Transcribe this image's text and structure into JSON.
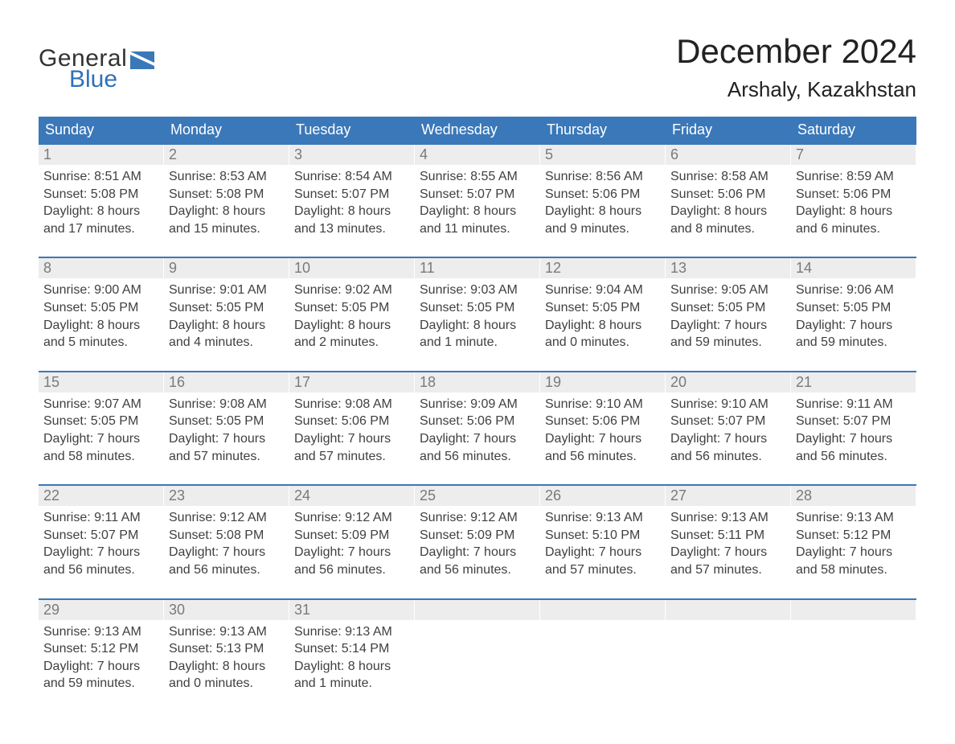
{
  "brand": {
    "general": "General",
    "blue": "Blue",
    "flag_color": "#3a78b9"
  },
  "title": "December 2024",
  "location": "Arshaly, Kazakhstan",
  "colors": {
    "header_bg": "#3a78b9",
    "header_text": "#ffffff",
    "daynum_bg": "#ededed",
    "daynum_text": "#7a7a7a",
    "body_text": "#404040",
    "week_border": "#3a78b9",
    "page_bg": "#ffffff"
  },
  "font": {
    "family": "Arial",
    "header_size_pt": 14,
    "body_size_pt": 12,
    "title_size_pt": 32,
    "location_size_pt": 20
  },
  "day_headers": [
    "Sunday",
    "Monday",
    "Tuesday",
    "Wednesday",
    "Thursday",
    "Friday",
    "Saturday"
  ],
  "weeks": [
    [
      {
        "n": "1",
        "sunrise": "Sunrise: 8:51 AM",
        "sunset": "Sunset: 5:08 PM",
        "d1": "Daylight: 8 hours",
        "d2": "and 17 minutes."
      },
      {
        "n": "2",
        "sunrise": "Sunrise: 8:53 AM",
        "sunset": "Sunset: 5:08 PM",
        "d1": "Daylight: 8 hours",
        "d2": "and 15 minutes."
      },
      {
        "n": "3",
        "sunrise": "Sunrise: 8:54 AM",
        "sunset": "Sunset: 5:07 PM",
        "d1": "Daylight: 8 hours",
        "d2": "and 13 minutes."
      },
      {
        "n": "4",
        "sunrise": "Sunrise: 8:55 AM",
        "sunset": "Sunset: 5:07 PM",
        "d1": "Daylight: 8 hours",
        "d2": "and 11 minutes."
      },
      {
        "n": "5",
        "sunrise": "Sunrise: 8:56 AM",
        "sunset": "Sunset: 5:06 PM",
        "d1": "Daylight: 8 hours",
        "d2": "and 9 minutes."
      },
      {
        "n": "6",
        "sunrise": "Sunrise: 8:58 AM",
        "sunset": "Sunset: 5:06 PM",
        "d1": "Daylight: 8 hours",
        "d2": "and 8 minutes."
      },
      {
        "n": "7",
        "sunrise": "Sunrise: 8:59 AM",
        "sunset": "Sunset: 5:06 PM",
        "d1": "Daylight: 8 hours",
        "d2": "and 6 minutes."
      }
    ],
    [
      {
        "n": "8",
        "sunrise": "Sunrise: 9:00 AM",
        "sunset": "Sunset: 5:05 PM",
        "d1": "Daylight: 8 hours",
        "d2": "and 5 minutes."
      },
      {
        "n": "9",
        "sunrise": "Sunrise: 9:01 AM",
        "sunset": "Sunset: 5:05 PM",
        "d1": "Daylight: 8 hours",
        "d2": "and 4 minutes."
      },
      {
        "n": "10",
        "sunrise": "Sunrise: 9:02 AM",
        "sunset": "Sunset: 5:05 PM",
        "d1": "Daylight: 8 hours",
        "d2": "and 2 minutes."
      },
      {
        "n": "11",
        "sunrise": "Sunrise: 9:03 AM",
        "sunset": "Sunset: 5:05 PM",
        "d1": "Daylight: 8 hours",
        "d2": "and 1 minute."
      },
      {
        "n": "12",
        "sunrise": "Sunrise: 9:04 AM",
        "sunset": "Sunset: 5:05 PM",
        "d1": "Daylight: 8 hours",
        "d2": "and 0 minutes."
      },
      {
        "n": "13",
        "sunrise": "Sunrise: 9:05 AM",
        "sunset": "Sunset: 5:05 PM",
        "d1": "Daylight: 7 hours",
        "d2": "and 59 minutes."
      },
      {
        "n": "14",
        "sunrise": "Sunrise: 9:06 AM",
        "sunset": "Sunset: 5:05 PM",
        "d1": "Daylight: 7 hours",
        "d2": "and 59 minutes."
      }
    ],
    [
      {
        "n": "15",
        "sunrise": "Sunrise: 9:07 AM",
        "sunset": "Sunset: 5:05 PM",
        "d1": "Daylight: 7 hours",
        "d2": "and 58 minutes."
      },
      {
        "n": "16",
        "sunrise": "Sunrise: 9:08 AM",
        "sunset": "Sunset: 5:05 PM",
        "d1": "Daylight: 7 hours",
        "d2": "and 57 minutes."
      },
      {
        "n": "17",
        "sunrise": "Sunrise: 9:08 AM",
        "sunset": "Sunset: 5:06 PM",
        "d1": "Daylight: 7 hours",
        "d2": "and 57 minutes."
      },
      {
        "n": "18",
        "sunrise": "Sunrise: 9:09 AM",
        "sunset": "Sunset: 5:06 PM",
        "d1": "Daylight: 7 hours",
        "d2": "and 56 minutes."
      },
      {
        "n": "19",
        "sunrise": "Sunrise: 9:10 AM",
        "sunset": "Sunset: 5:06 PM",
        "d1": "Daylight: 7 hours",
        "d2": "and 56 minutes."
      },
      {
        "n": "20",
        "sunrise": "Sunrise: 9:10 AM",
        "sunset": "Sunset: 5:07 PM",
        "d1": "Daylight: 7 hours",
        "d2": "and 56 minutes."
      },
      {
        "n": "21",
        "sunrise": "Sunrise: 9:11 AM",
        "sunset": "Sunset: 5:07 PM",
        "d1": "Daylight: 7 hours",
        "d2": "and 56 minutes."
      }
    ],
    [
      {
        "n": "22",
        "sunrise": "Sunrise: 9:11 AM",
        "sunset": "Sunset: 5:07 PM",
        "d1": "Daylight: 7 hours",
        "d2": "and 56 minutes."
      },
      {
        "n": "23",
        "sunrise": "Sunrise: 9:12 AM",
        "sunset": "Sunset: 5:08 PM",
        "d1": "Daylight: 7 hours",
        "d2": "and 56 minutes."
      },
      {
        "n": "24",
        "sunrise": "Sunrise: 9:12 AM",
        "sunset": "Sunset: 5:09 PM",
        "d1": "Daylight: 7 hours",
        "d2": "and 56 minutes."
      },
      {
        "n": "25",
        "sunrise": "Sunrise: 9:12 AM",
        "sunset": "Sunset: 5:09 PM",
        "d1": "Daylight: 7 hours",
        "d2": "and 56 minutes."
      },
      {
        "n": "26",
        "sunrise": "Sunrise: 9:13 AM",
        "sunset": "Sunset: 5:10 PM",
        "d1": "Daylight: 7 hours",
        "d2": "and 57 minutes."
      },
      {
        "n": "27",
        "sunrise": "Sunrise: 9:13 AM",
        "sunset": "Sunset: 5:11 PM",
        "d1": "Daylight: 7 hours",
        "d2": "and 57 minutes."
      },
      {
        "n": "28",
        "sunrise": "Sunrise: 9:13 AM",
        "sunset": "Sunset: 5:12 PM",
        "d1": "Daylight: 7 hours",
        "d2": "and 58 minutes."
      }
    ],
    [
      {
        "n": "29",
        "sunrise": "Sunrise: 9:13 AM",
        "sunset": "Sunset: 5:12 PM",
        "d1": "Daylight: 7 hours",
        "d2": "and 59 minutes."
      },
      {
        "n": "30",
        "sunrise": "Sunrise: 9:13 AM",
        "sunset": "Sunset: 5:13 PM",
        "d1": "Daylight: 8 hours",
        "d2": "and 0 minutes."
      },
      {
        "n": "31",
        "sunrise": "Sunrise: 9:13 AM",
        "sunset": "Sunset: 5:14 PM",
        "d1": "Daylight: 8 hours",
        "d2": "and 1 minute."
      },
      null,
      null,
      null,
      null
    ]
  ]
}
